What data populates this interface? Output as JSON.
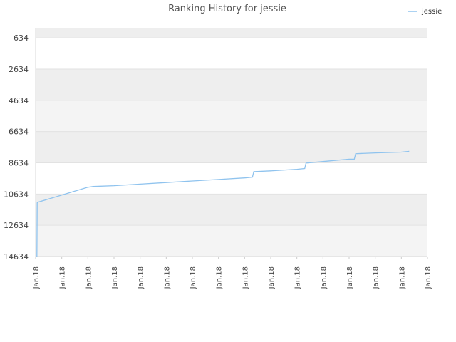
{
  "chart_data": {
    "type": "line",
    "title": "Ranking History for jessie",
    "legend": {
      "position": "top-right",
      "entries": [
        "jessie"
      ]
    },
    "y_axis": {
      "inverted": true,
      "range": [
        34,
        14634
      ],
      "ticks": [
        "634",
        "2634",
        "4634",
        "6634",
        "8634",
        "10634",
        "12634",
        "14634"
      ],
      "tick_values": [
        634,
        2634,
        4634,
        6634,
        8634,
        10634,
        12634,
        14634
      ]
    },
    "x_axis": {
      "ticks": [
        "Jan.18",
        "Jan.18",
        "Jan.18",
        "Jan.18",
        "Jan.18",
        "Jan.18",
        "Jan.18",
        "Jan.18",
        "Jan.18",
        "Jan.18",
        "Jan.18",
        "Jan.18",
        "Jan.18",
        "Jan.18",
        "Jan.18",
        "Jan.18"
      ],
      "range": [
        0,
        15
      ]
    },
    "grid": true,
    "series": [
      {
        "name": "jessie",
        "color": "#8fc3ee",
        "points": [
          {
            "x": 0.05,
            "y": 14634
          },
          {
            "x": 0.06,
            "y": 11200
          },
          {
            "x": 0.1,
            "y": 11150
          },
          {
            "x": 1.0,
            "y": 10700
          },
          {
            "x": 2.0,
            "y": 10200
          },
          {
            "x": 2.2,
            "y": 10150
          },
          {
            "x": 3.0,
            "y": 10100
          },
          {
            "x": 4.0,
            "y": 10000
          },
          {
            "x": 5.0,
            "y": 9900
          },
          {
            "x": 6.0,
            "y": 9800
          },
          {
            "x": 7.0,
            "y": 9700
          },
          {
            "x": 8.0,
            "y": 9600
          },
          {
            "x": 8.3,
            "y": 9550
          },
          {
            "x": 8.35,
            "y": 9200
          },
          {
            "x": 9.0,
            "y": 9150
          },
          {
            "x": 10.0,
            "y": 9050
          },
          {
            "x": 10.3,
            "y": 9000
          },
          {
            "x": 10.35,
            "y": 8650
          },
          {
            "x": 11.0,
            "y": 8550
          },
          {
            "x": 12.0,
            "y": 8400
          },
          {
            "x": 12.2,
            "y": 8400
          },
          {
            "x": 12.25,
            "y": 8050
          },
          {
            "x": 13.0,
            "y": 8000
          },
          {
            "x": 14.0,
            "y": 7950
          },
          {
            "x": 14.3,
            "y": 7900
          }
        ]
      }
    ]
  }
}
